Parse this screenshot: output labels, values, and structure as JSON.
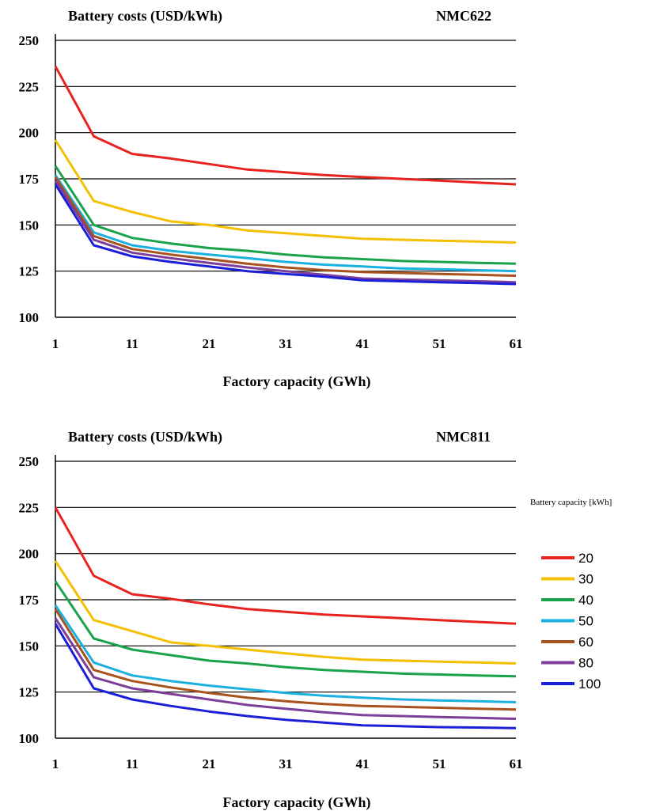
{
  "chart_data": [
    {
      "type": "line",
      "title": "Battery costs (USD/kWh)",
      "subtitle": "NMC622",
      "xlabel": "Factory capacity (GWh)",
      "ylabel": "",
      "x_ticks": [
        1,
        11,
        21,
        31,
        41,
        51,
        61
      ],
      "y_ticks": [
        100,
        125,
        150,
        175,
        200,
        225,
        250
      ],
      "ylim": [
        100,
        250
      ],
      "xlim": [
        1,
        61
      ],
      "grid": "horizontal",
      "x": [
        1,
        6,
        11,
        16,
        21,
        26,
        31,
        36,
        41,
        46,
        51,
        56,
        61
      ],
      "series": [
        {
          "name": "20",
          "color": "#e8221f",
          "values": [
            236,
            198,
            188.5,
            186,
            183,
            180,
            178.5,
            177,
            176,
            175,
            174,
            173,
            172
          ]
        },
        {
          "name": "30",
          "color": "#f5c000",
          "values": [
            196,
            163,
            157,
            152,
            150,
            147,
            145.5,
            144,
            142.5,
            142,
            141.5,
            141,
            140.5
          ]
        },
        {
          "name": "40",
          "color": "#1aa34a",
          "values": [
            182,
            150,
            143,
            140,
            137.5,
            136,
            134,
            132.5,
            131.5,
            130.5,
            130,
            129.5,
            129
          ]
        },
        {
          "name": "50",
          "color": "#1ab0e0",
          "values": [
            177,
            146,
            139,
            136,
            134,
            132,
            130,
            128.5,
            127.5,
            126.5,
            126,
            125.5,
            125
          ]
        },
        {
          "name": "60",
          "color": "#a8521e",
          "values": [
            176,
            144,
            137,
            134,
            131.5,
            129,
            127,
            125.5,
            124.5,
            124,
            123.5,
            123,
            122.5
          ]
        },
        {
          "name": "80",
          "color": "#7e3f9a",
          "values": [
            174,
            142,
            135,
            132,
            129.5,
            127,
            125,
            123,
            121,
            120.5,
            120,
            119.5,
            119
          ]
        },
        {
          "name": "100",
          "color": "#1b20d8",
          "values": [
            172,
            139,
            133,
            130,
            127.5,
            125,
            123.5,
            122,
            120,
            119.5,
            119,
            118.5,
            118
          ]
        }
      ]
    },
    {
      "type": "line",
      "title": "Battery costs (USD/kWh)",
      "subtitle": "NMC811",
      "xlabel": "Factory capacity (GWh)",
      "ylabel": "",
      "x_ticks": [
        1,
        11,
        21,
        31,
        41,
        51,
        61
      ],
      "y_ticks": [
        100,
        125,
        150,
        175,
        200,
        225,
        250
      ],
      "ylim": [
        100,
        250
      ],
      "xlim": [
        1,
        61
      ],
      "grid": "horizontal",
      "x": [
        1,
        6,
        11,
        16,
        21,
        26,
        31,
        36,
        41,
        46,
        51,
        56,
        61
      ],
      "series": [
        {
          "name": "20",
          "color": "#e8221f",
          "values": [
            225,
            188,
            178,
            175.5,
            172.5,
            170,
            168.5,
            167,
            166,
            165,
            164,
            163,
            162
          ]
        },
        {
          "name": "30",
          "color": "#f5c000",
          "values": [
            196,
            164,
            158,
            152,
            150,
            148,
            146,
            144,
            142.5,
            142,
            141.5,
            141,
            140.5
          ]
        },
        {
          "name": "40",
          "color": "#1aa34a",
          "values": [
            185,
            154,
            148,
            145,
            142,
            140.5,
            138.5,
            137,
            136,
            135,
            134.5,
            134,
            133.5
          ]
        },
        {
          "name": "50",
          "color": "#1ab0e0",
          "values": [
            172,
            141,
            134,
            131,
            128.5,
            126.5,
            124.5,
            123,
            122,
            121,
            120.5,
            120,
            119.5
          ]
        },
        {
          "name": "60",
          "color": "#a8521e",
          "values": [
            170,
            137,
            131,
            127.5,
            124.5,
            122,
            120,
            118.5,
            117.5,
            117,
            116.5,
            116,
            115.5
          ]
        },
        {
          "name": "80",
          "color": "#7e3f9a",
          "values": [
            165,
            133,
            127,
            124,
            121,
            118,
            116,
            114,
            112.5,
            112,
            111.5,
            111,
            110.5
          ]
        },
        {
          "name": "100",
          "color": "#1b20d8",
          "values": [
            162,
            127,
            121,
            117.5,
            114.5,
            112,
            110,
            108.5,
            107,
            106.5,
            106,
            105.8,
            105.5
          ]
        }
      ]
    }
  ],
  "legend": {
    "title": "Battery capacity  [kWh]",
    "items": [
      {
        "label": "20",
        "color": "#e8221f"
      },
      {
        "label": "30",
        "color": "#f5c000"
      },
      {
        "label": "40",
        "color": "#1aa34a"
      },
      {
        "label": "50",
        "color": "#1ab0e0"
      },
      {
        "label": "60",
        "color": "#a8521e"
      },
      {
        "label": "80",
        "color": "#7e3f9a"
      },
      {
        "label": "100",
        "color": "#1b20d8"
      }
    ]
  }
}
